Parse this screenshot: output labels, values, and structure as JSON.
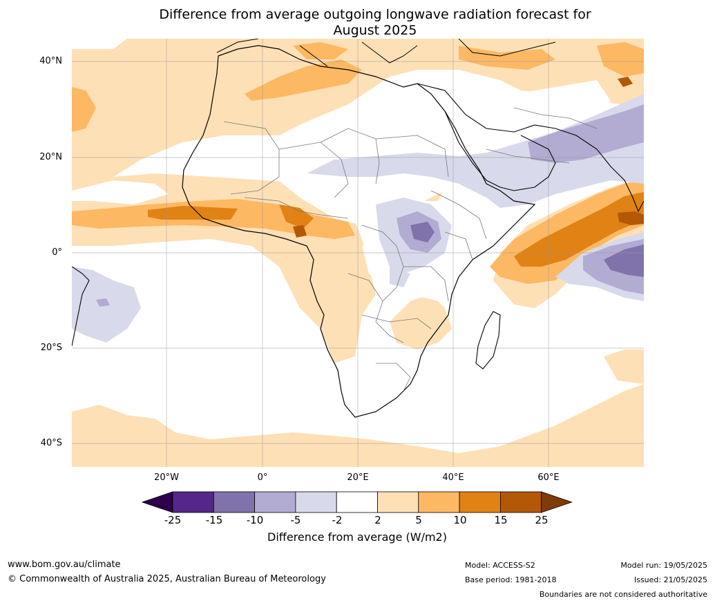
{
  "title_line1": "Difference from average outgoing longwave radiation forecast for",
  "title_line2": "August 2025",
  "map": {
    "lat_labels": [
      "40°N",
      "20°N",
      "0°",
      "20°S",
      "40°S"
    ],
    "lon_labels": [
      "20°W",
      "0°",
      "20°E",
      "40°E",
      "60°E"
    ],
    "gridlines": true,
    "region": "Africa and surrounding oceans",
    "fill_colors": {
      "pos_2_5": "#fee0b6",
      "pos_5_10": "#fdb863",
      "pos_10_15": "#e08214",
      "pos_15_25": "#b35806",
      "neg_2_5": "#d8daeb",
      "neg_5_10": "#b2abd2",
      "neg_10_15": "#8073ac",
      "neg_15_25": "#542788"
    }
  },
  "colorbar": {
    "ticks": [
      "-25",
      "-15",
      "-10",
      "-5",
      "-2",
      "2",
      "5",
      "10",
      "15",
      "25"
    ],
    "colors": [
      "#2d004b",
      "#542788",
      "#8073ac",
      "#b2abd2",
      "#d8daeb",
      "#ffffff",
      "#fee0b6",
      "#fdb863",
      "#e08214",
      "#b35806",
      "#7f3b08"
    ],
    "label": "Difference from average (W/m2)"
  },
  "footer": {
    "url": "www.bom.gov.au/climate",
    "copyright": "© Commonwealth of Australia 2025, Australian Bureau of Meteorology",
    "model": "Model: ACCESS-S2",
    "base_period": "Base period: 1981-2018",
    "model_run": "Model run: 19/05/2025",
    "issued": "Issued: 21/05/2025",
    "disclaimer": "Boundaries are not considered authoritative"
  }
}
